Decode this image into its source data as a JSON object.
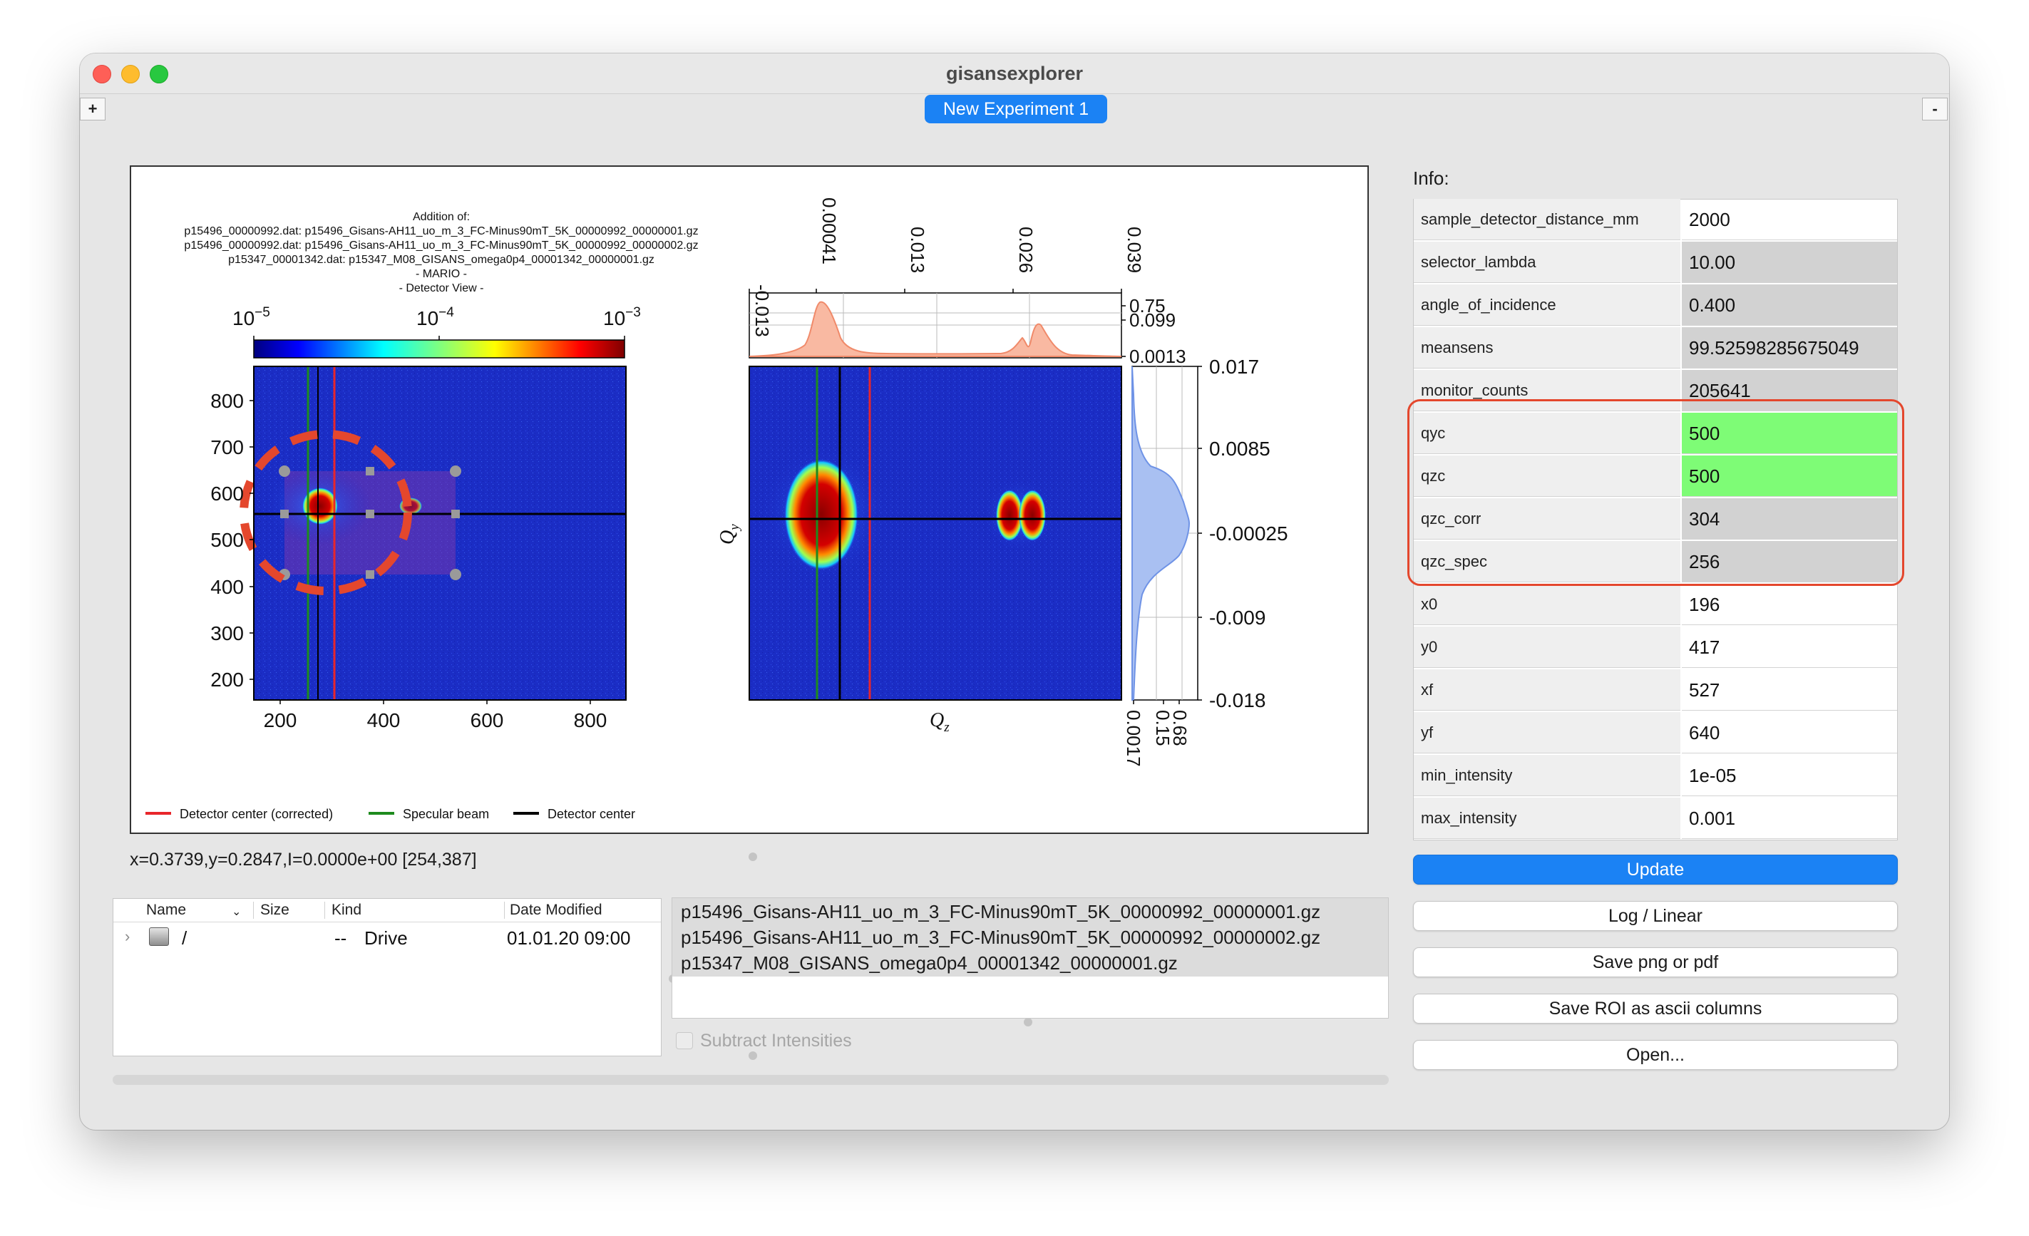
{
  "window": {
    "title": "gisansexplorer"
  },
  "tabs": {
    "add": "+",
    "active": "New Experiment 1",
    "remove": "-"
  },
  "plot": {
    "header_lines": [
      "Addition of:",
      "p15496_00000992.dat: p15496_Gisans-AH11_uo_m_3_FC-Minus90mT_5K_00000992_00000001.gz",
      "p15496_00000992.dat: p15496_Gisans-AH11_uo_m_3_FC-Minus90mT_5K_00000992_00000002.gz",
      "p15347_00001342.dat: p15347_M08_GISANS_omega0p4_00001342_00000001.gz",
      "- MARIO -",
      "- Detector View -"
    ],
    "colorbar_ticks": [
      "10",
      "10",
      "10"
    ],
    "colorbar_exponents": [
      "−5",
      "−4",
      "−3"
    ],
    "detector_y_ticks": [
      "800",
      "700",
      "600",
      "500",
      "400",
      "300",
      "200"
    ],
    "detector_x_ticks": [
      "200",
      "400",
      "600",
      "800"
    ],
    "qz_top_ticks": [
      "-0.013",
      "0.00041",
      "0.013",
      "0.026",
      "0.039"
    ],
    "qz_profile_ticks": [
      "0.75",
      "0.099",
      "0.0013"
    ],
    "qy_ticks": [
      "0.017",
      "0.0085",
      "-0.00025",
      "-0.009",
      "-0.018"
    ],
    "qy_profile_ticks": [
      "0.0017",
      "0.15",
      "0.68"
    ],
    "qz_label": "Q",
    "qz_label_sub": "z",
    "qy_label": "Q",
    "qy_label_sub": "y",
    "legend": [
      "Detector center (corrected)",
      "Specular beam",
      "Detector center"
    ],
    "legend_colors": [
      "#e8262b",
      "#1e8b1e",
      "#000000"
    ]
  },
  "status": {
    "coords": "x=0.3739,y=0.2847,I=0.0000e+00   [254,387]"
  },
  "file_browser": {
    "columns": [
      "Name",
      "Size",
      "Kind",
      "Date Modified"
    ],
    "rows": [
      {
        "name": "/",
        "size": "--",
        "kind": "Drive",
        "date": "01.01.20 09:00"
      }
    ]
  },
  "file_list": [
    "p15496_Gisans-AH11_uo_m_3_FC-Minus90mT_5K_00000992_00000001.gz",
    "p15496_Gisans-AH11_uo_m_3_FC-Minus90mT_5K_00000992_00000002.gz",
    "p15347_M08_GISANS_omega0p4_00001342_00000001.gz"
  ],
  "subtract_label": "Subtract Intensities",
  "info": {
    "label": "Info:",
    "rows": [
      {
        "key": "sample_detector_distance_mm",
        "value": "2000",
        "state": "white"
      },
      {
        "key": "selector_lambda",
        "value": "10.00",
        "state": "gray"
      },
      {
        "key": "angle_of_incidence",
        "value": "0.400",
        "state": "gray"
      },
      {
        "key": "meansens",
        "value": "99.52598285675049",
        "state": "gray"
      },
      {
        "key": "monitor_counts",
        "value": "205641",
        "state": "gray"
      },
      {
        "key": "qyc",
        "value": "500",
        "state": "green"
      },
      {
        "key": "qzc",
        "value": "500",
        "state": "green"
      },
      {
        "key": "qzc_corr",
        "value": "304",
        "state": "gray"
      },
      {
        "key": "qzc_spec",
        "value": "256",
        "state": "gray"
      },
      {
        "key": "x0",
        "value": "196",
        "state": "white"
      },
      {
        "key": "y0",
        "value": "417",
        "state": "white"
      },
      {
        "key": "xf",
        "value": "527",
        "state": "white"
      },
      {
        "key": "yf",
        "value": "640",
        "state": "white"
      },
      {
        "key": "min_intensity",
        "value": "1e-05",
        "state": "white"
      },
      {
        "key": "max_intensity",
        "value": "0.001",
        "state": "white"
      }
    ]
  },
  "buttons": {
    "update": "Update",
    "log_linear": "Log / Linear",
    "save_png": "Save png or pdf",
    "save_roi": "Save ROI as ascii columns",
    "open": "Open..."
  },
  "colors": {
    "accent": "#1b82f4",
    "highlight_green": "#7efc76",
    "annotation_red": "#e4472d"
  }
}
